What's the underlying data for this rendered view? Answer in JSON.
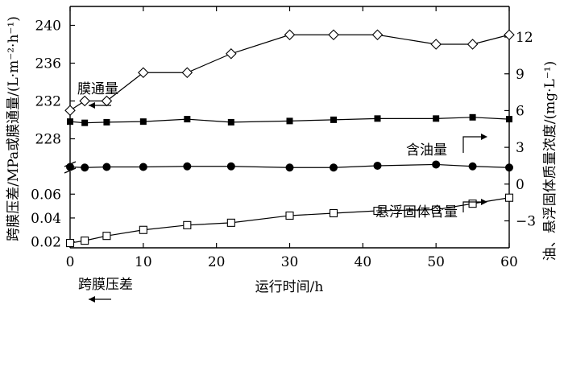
{
  "chart_data": {
    "type": "line",
    "xlabel": "运行时间/h",
    "ylabel_left": "跨膜压差/MPa或膜通量/(L·m⁻²·h⁻¹)",
    "ylabel_right": "油、悬浮固体质量浓度/(mg·L⁻¹)",
    "x_ticks": [
      "0",
      "10",
      "20",
      "30",
      "40",
      "50",
      "60"
    ],
    "xlim": [
      0,
      60
    ],
    "left_upper_ticks": [
      "228",
      "232",
      "236",
      "240"
    ],
    "left_upper_range": [
      226,
      242
    ],
    "left_lower_ticks": [
      "0.02",
      "0.04",
      "0.06"
    ],
    "left_lower_range": [
      0.015,
      0.073
    ],
    "right_ticks": [
      "−3",
      "0",
      "3",
      "6",
      "9",
      "12"
    ],
    "right_range": [
      -5.2,
      14.5
    ],
    "grid": false,
    "series": [
      {
        "name": "膜通量",
        "axis": "left_upper",
        "marker": "diamond-open",
        "x": [
          0,
          2,
          5,
          10,
          16,
          22,
          30,
          36,
          42,
          50,
          55,
          60
        ],
        "y": [
          231,
          232,
          232,
          235,
          235,
          237,
          239,
          239,
          239,
          238,
          238,
          239
        ]
      },
      {
        "name": "含油量",
        "axis": "right",
        "marker": "square-filled",
        "x": [
          0,
          2,
          5,
          10,
          16,
          22,
          30,
          36,
          42,
          50,
          55,
          60
        ],
        "y": [
          5.1,
          5.0,
          5.05,
          5.1,
          5.3,
          5.05,
          5.15,
          5.25,
          5.35,
          5.35,
          5.45,
          5.3
        ]
      },
      {
        "name": "悬浮固体含量",
        "axis": "right",
        "marker": "circle-filled",
        "x": [
          0,
          2,
          5,
          10,
          16,
          22,
          30,
          36,
          42,
          50,
          55,
          60
        ],
        "y": [
          1.4,
          1.35,
          1.4,
          1.4,
          1.45,
          1.45,
          1.35,
          1.35,
          1.5,
          1.6,
          1.45,
          1.35
        ]
      },
      {
        "name": "跨膜压差",
        "axis": "left_lower",
        "marker": "square-open",
        "x": [
          0,
          2,
          5,
          10,
          16,
          22,
          30,
          36,
          42,
          50,
          55,
          60
        ],
        "y": [
          0.019,
          0.021,
          0.025,
          0.03,
          0.034,
          0.036,
          0.042,
          0.044,
          0.046,
          0.047,
          0.052,
          0.057
        ]
      }
    ],
    "annotations": {
      "flux": "膜通量",
      "oil": "含油量",
      "ss": "悬浮固体含量",
      "tmp": "跨膜压差"
    }
  }
}
